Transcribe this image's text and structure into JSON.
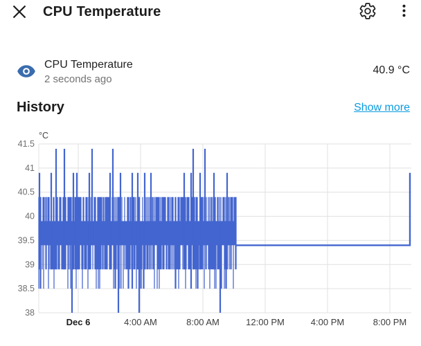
{
  "header": {
    "title": "CPU Temperature",
    "close_icon": "close-x",
    "settings_icon": "gear",
    "menu_icon": "three-dot-vertical"
  },
  "entity": {
    "icon": "eye",
    "icon_color": "#3a6cae",
    "name": "CPU Temperature",
    "last_changed": "2 seconds ago",
    "state": "40.9 °C"
  },
  "history": {
    "title": "History",
    "show_more_label": "Show more",
    "link_color": "#0b9be0"
  },
  "chart_data": {
    "type": "line",
    "series_name": "CPU Temperature",
    "line_color": "#4365cf",
    "grid_color": "#e0e0e0",
    "unit_label": "°C",
    "ylim": [
      38,
      41.5
    ],
    "yticks": [
      41.5,
      41,
      40.5,
      40,
      39.5,
      39,
      38.5,
      38
    ],
    "xticks": [
      {
        "label": "Dec 6",
        "hour": 0,
        "bold": true
      },
      {
        "label": "4:00 AM",
        "hour": 4,
        "bold": false
      },
      {
        "label": "8:00 AM",
        "hour": 8,
        "bold": false
      },
      {
        "label": "12:00 PM",
        "hour": 12,
        "bold": false
      },
      {
        "label": "4:00 PM",
        "hour": 16,
        "bold": false
      },
      {
        "label": "8:00 PM",
        "hour": 20,
        "bold": false
      }
    ],
    "x_domain_hours": [
      -2.53,
      21.33
    ],
    "quantized_levels": [
      38.0,
      38.5,
      38.9,
      39.4,
      39.9,
      40.4,
      40.9,
      41.4
    ],
    "noisy_segment": {
      "start_hour": -2.53,
      "end_hour": 10.13,
      "core_band": [
        39.4,
        40.4
      ],
      "common_low": 38.9,
      "occasional_low": 38.5,
      "spikes_41_4_hours": [
        -1.42,
        -0.89,
        0.89,
        2.22,
        7.38,
        8.13
      ],
      "spikes_40_9_hours": [
        -2.49,
        -1.73,
        -0.31,
        -0.09,
        0.71,
        2.04,
        2.71,
        3.47,
        3.82,
        4.27,
        4.67,
        6.8,
        7.24,
        7.82,
        8.71,
        9.56
      ],
      "dips_38_0_hours": [
        -0.4,
        2.58,
        3.91,
        9.11
      ]
    },
    "flat_segment": {
      "start_hour": 10.13,
      "end_hour": 21.29,
      "value": 39.4
    },
    "final_spike": {
      "hour": 21.29,
      "value": 40.9
    }
  }
}
